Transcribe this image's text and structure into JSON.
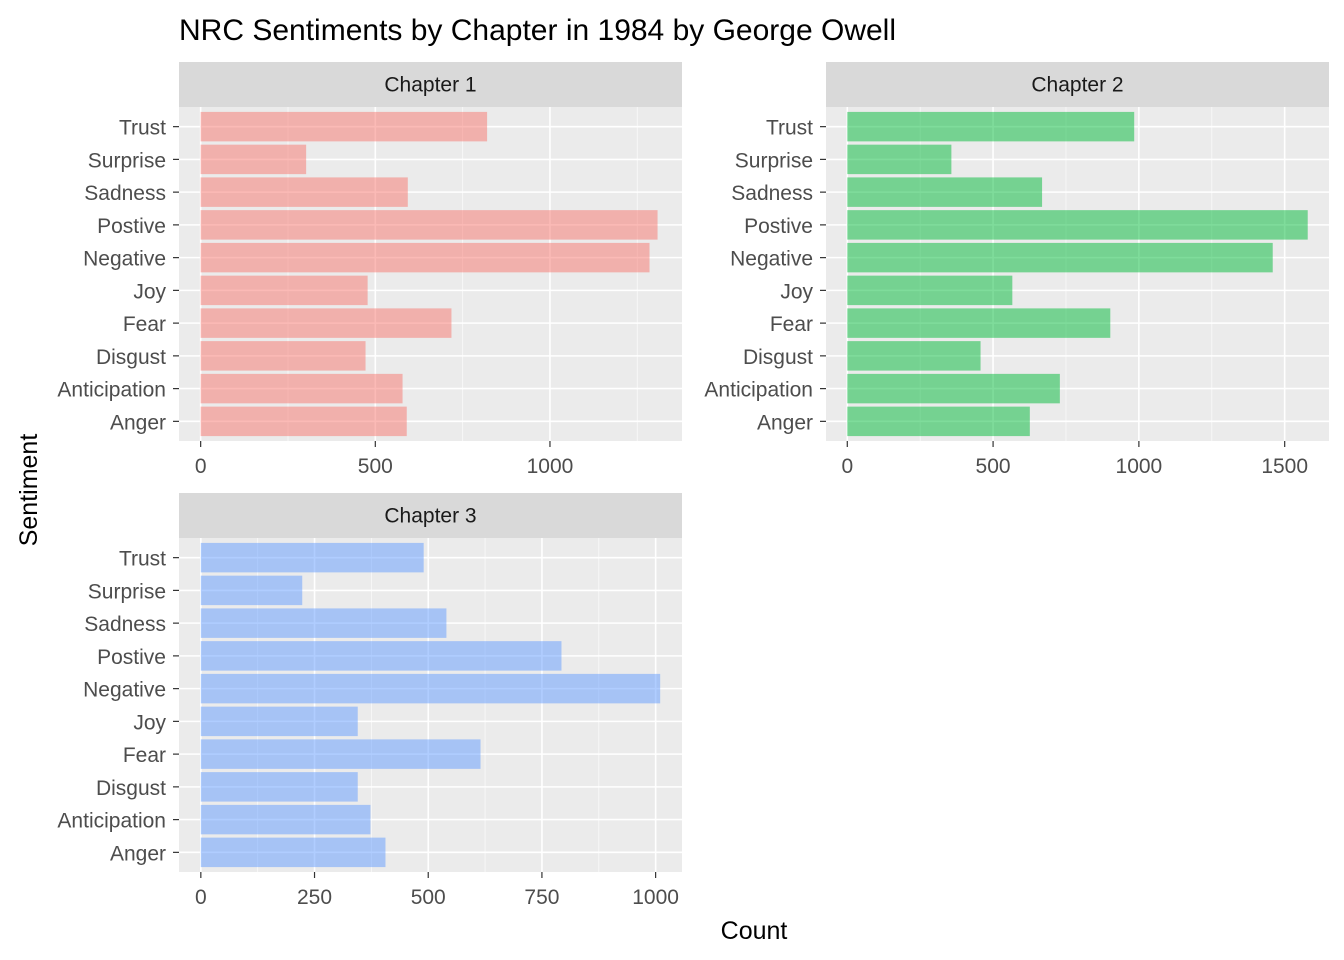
{
  "chart_data": {
    "type": "bar",
    "orientation": "horizontal",
    "title": "NRC Sentiments by Chapter in 1984 by George Owell",
    "xlabel": "Count",
    "ylabel": "Sentiment",
    "grid": true,
    "categories": [
      "Anger",
      "Anticipation",
      "Disgust",
      "Fear",
      "Joy",
      "Negative",
      "Postive",
      "Sadness",
      "Surprise",
      "Trust"
    ],
    "panels": [
      {
        "strip": "Chapter 1",
        "color": "#F8766D",
        "values": [
          590,
          578,
          472,
          718,
          478,
          1285,
          1308,
          593,
          302,
          820
        ],
        "xlim": [
          -62,
          1378
        ],
        "xticks": [
          0,
          500,
          1000
        ],
        "minor_xticks": [
          250,
          750,
          1250
        ]
      },
      {
        "strip": "Chapter 2",
        "color": "#00BA38",
        "values": [
          626,
          729,
          457,
          902,
          566,
          1459,
          1579,
          668,
          357,
          984
        ],
        "xlim": [
          -73,
          1652
        ],
        "xticks": [
          0,
          500,
          1000,
          1500
        ],
        "minor_xticks": [
          250,
          750,
          1250
        ]
      },
      {
        "strip": "Chapter 3",
        "color": "#619CFF",
        "values": [
          406,
          373,
          345,
          615,
          345,
          1010,
          793,
          540,
          223,
          490
        ],
        "xlim": [
          -48,
          1058
        ],
        "xticks": [
          0,
          250,
          500,
          750,
          1000
        ],
        "minor_xticks": [
          125,
          375,
          625,
          875
        ]
      }
    ]
  }
}
